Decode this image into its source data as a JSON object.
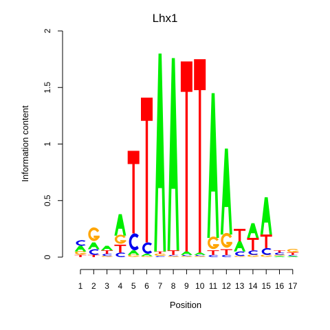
{
  "chart_data": {
    "type": "sequence-logo",
    "title": "Lhx1",
    "xlabel": "Position",
    "ylabel": "Information content",
    "ylim": [
      0,
      2
    ],
    "yticks": [
      {
        "value": 0,
        "label": "0"
      },
      {
        "value": 0.5,
        "label": "0.5"
      },
      {
        "value": 1,
        "label": "1"
      },
      {
        "value": 1.5,
        "label": "1.5"
      },
      {
        "value": 2,
        "label": "2"
      }
    ],
    "xticks": [
      "1",
      "2",
      "3",
      "4",
      "5",
      "6",
      "7",
      "8",
      "9",
      "10",
      "11",
      "12",
      "13",
      "14",
      "15",
      "16",
      "17"
    ],
    "colors": {
      "A": "#00ee00",
      "C": "#0000ee",
      "G": "#ffa500",
      "T": "#ff0000"
    },
    "positions": [
      {
        "pos": 1,
        "stack": [
          [
            "T",
            0.02
          ],
          [
            "G",
            0.03
          ],
          [
            "A",
            0.05
          ],
          [
            "C",
            0.05
          ]
        ]
      },
      {
        "pos": 2,
        "stack": [
          [
            "T",
            0.02
          ],
          [
            "C",
            0.05
          ],
          [
            "A",
            0.06
          ],
          [
            "G",
            0.12
          ]
        ]
      },
      {
        "pos": 3,
        "stack": [
          [
            "G",
            0.01
          ],
          [
            "C",
            0.02
          ],
          [
            "T",
            0.03
          ],
          [
            "A",
            0.04
          ]
        ]
      },
      {
        "pos": 4,
        "stack": [
          [
            "C",
            0.04
          ],
          [
            "T",
            0.07
          ],
          [
            "G",
            0.08
          ],
          [
            "A",
            0.19
          ]
        ]
      },
      {
        "pos": 5,
        "stack": [
          [
            "G",
            0.02
          ],
          [
            "A",
            0.04
          ],
          [
            "C",
            0.15
          ],
          [
            "T",
            0.73
          ]
        ]
      },
      {
        "pos": 6,
        "stack": [
          [
            "G",
            0.01
          ],
          [
            "A",
            0.02
          ],
          [
            "C",
            0.1
          ],
          [
            "T",
            1.28
          ]
        ]
      },
      {
        "pos": 7,
        "stack": [
          [
            "C",
            0.01
          ],
          [
            "G",
            0.02
          ],
          [
            "T",
            0.02
          ],
          [
            "A",
            1.75
          ]
        ]
      },
      {
        "pos": 8,
        "stack": [
          [
            "G",
            0.01
          ],
          [
            "C",
            0.01
          ],
          [
            "T",
            0.04
          ],
          [
            "A",
            1.7
          ]
        ]
      },
      {
        "pos": 9,
        "stack": [
          [
            "G",
            0.01
          ],
          [
            "C",
            0.01
          ],
          [
            "A",
            0.03
          ],
          [
            "T",
            1.68
          ]
        ]
      },
      {
        "pos": 10,
        "stack": [
          [
            "G",
            0.01
          ],
          [
            "C",
            0.01
          ],
          [
            "A",
            0.02
          ],
          [
            "T",
            1.71
          ]
        ]
      },
      {
        "pos": 11,
        "stack": [
          [
            "C",
            0.02
          ],
          [
            "T",
            0.04
          ],
          [
            "G",
            0.11
          ],
          [
            "A",
            1.28
          ]
        ]
      },
      {
        "pos": 12,
        "stack": [
          [
            "C",
            0.02
          ],
          [
            "T",
            0.05
          ],
          [
            "G",
            0.13
          ],
          [
            "A",
            0.76
          ]
        ]
      },
      {
        "pos": 13,
        "stack": [
          [
            "G",
            0.01
          ],
          [
            "C",
            0.04
          ],
          [
            "A",
            0.09
          ],
          [
            "T",
            0.11
          ]
        ]
      },
      {
        "pos": 14,
        "stack": [
          [
            "G",
            0.02
          ],
          [
            "C",
            0.04
          ],
          [
            "T",
            0.11
          ],
          [
            "A",
            0.13
          ]
        ]
      },
      {
        "pos": 15,
        "stack": [
          [
            "G",
            0.02
          ],
          [
            "C",
            0.06
          ],
          [
            "T",
            0.12
          ],
          [
            "A",
            0.33
          ]
        ]
      },
      {
        "pos": 16,
        "stack": [
          [
            "A",
            0.01
          ],
          [
            "G",
            0.01
          ],
          [
            "C",
            0.02
          ],
          [
            "T",
            0.02
          ]
        ]
      },
      {
        "pos": 17,
        "stack": [
          [
            "A",
            0.01
          ],
          [
            "C",
            0.01
          ],
          [
            "T",
            0.02
          ],
          [
            "G",
            0.03
          ]
        ]
      }
    ]
  }
}
